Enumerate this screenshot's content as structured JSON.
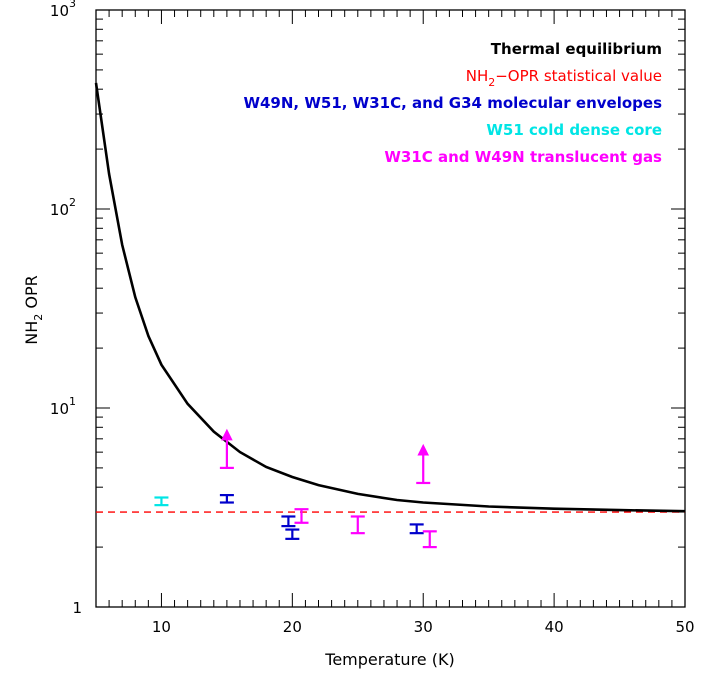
{
  "chart_data": {
    "type": "scatter",
    "xlabel": "Temperature (K)",
    "ylabel_main": "NH",
    "ylabel_sub": "2",
    "ylabel_rest": " OPR",
    "xlim": [
      5,
      50
    ],
    "ylim": [
      1,
      1000
    ],
    "yscale": "log",
    "x_ticks": [
      10,
      20,
      30,
      40,
      50
    ],
    "x_tick_labels": [
      "10",
      "20",
      "30",
      "40",
      "50"
    ],
    "y_ticks": [
      {
        "value": 1,
        "base": "1",
        "exp": ""
      },
      {
        "value": 10,
        "base": "10",
        "exp": "1"
      },
      {
        "value": 100,
        "base": "10",
        "exp": "2"
      },
      {
        "value": 1000,
        "base": "10",
        "exp": "3"
      }
    ],
    "grid": false,
    "legend": [
      {
        "text": "Thermal equilibrium",
        "color": "#000000",
        "bold": true
      },
      {
        "text_main": "NH",
        "text_sub": "2",
        "text_rest": "−OPR statistical value",
        "color": "#ff0000",
        "bold": false
      },
      {
        "text": "W49N, W51, W31C, and G34 molecular envelopes",
        "color": "#0000cc",
        "bold": true
      },
      {
        "text": "W51 cold dense core",
        "color": "#00e5e5",
        "bold": true
      },
      {
        "text": "W31C and W49N translucent gas",
        "color": "#ff00ff",
        "bold": true
      }
    ],
    "legend_position": "top-right",
    "statistical_value": 3.0,
    "series": [
      {
        "name": "Thermal equilibrium",
        "kind": "line",
        "color": "#000000",
        "x": [
          5,
          6,
          7,
          8,
          9,
          10,
          12,
          14,
          16,
          18,
          20,
          22,
          25,
          28,
          30,
          35,
          40,
          45,
          50
        ],
        "y": [
          430,
          150,
          66,
          36,
          23,
          16.5,
          10.5,
          7.6,
          6.0,
          5.05,
          4.5,
          4.1,
          3.7,
          3.45,
          3.35,
          3.2,
          3.12,
          3.07,
          3.03
        ]
      },
      {
        "name": "W49N, W51, W31C, and G34 molecular envelopes",
        "kind": "errorbar",
        "color": "#0000cc",
        "points": [
          {
            "x": 15,
            "low": 3.35,
            "high": 3.65
          },
          {
            "x": 19.7,
            "low": 2.55,
            "high": 2.85
          },
          {
            "x": 20,
            "low": 2.2,
            "high": 2.45
          },
          {
            "x": 29.5,
            "low": 2.35,
            "high": 2.6
          }
        ]
      },
      {
        "name": "W51 cold dense core",
        "kind": "errorbar",
        "color": "#00e5e5",
        "points": [
          {
            "x": 10,
            "low": 3.25,
            "high": 3.55
          }
        ]
      },
      {
        "name": "W31C and W49N translucent gas",
        "kind": "errorbar",
        "color": "#ff00ff",
        "points": [
          {
            "x": 20.7,
            "low": 2.65,
            "high": 3.1
          },
          {
            "x": 25,
            "low": 2.35,
            "high": 2.85
          },
          {
            "x": 30.5,
            "low": 2.0,
            "high": 2.4
          }
        ],
        "lower_limits": [
          {
            "x": 15,
            "y": 5.0
          },
          {
            "x": 30,
            "y": 4.2
          }
        ]
      }
    ]
  }
}
